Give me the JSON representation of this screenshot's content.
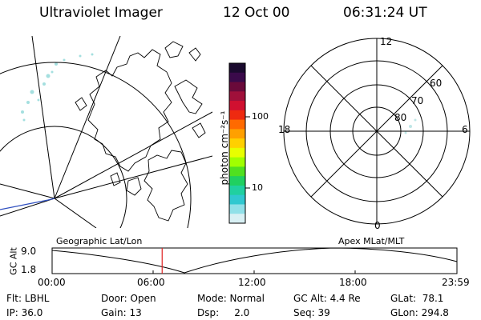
{
  "header": {
    "title": "Ultraviolet Imager",
    "date": "12 Oct 00",
    "time": "06:31:24 UT"
  },
  "colorbar": {
    "unit_label": "photon cm⁻²s⁻¹",
    "ticks": [
      "100",
      "10"
    ],
    "colors": [
      "#1a0a2e",
      "#3a0a4a",
      "#6a0a3a",
      "#a0103a",
      "#d01030",
      "#ee2a10",
      "#ff6a00",
      "#ffa000",
      "#ffd000",
      "#e8ff00",
      "#a0ff00",
      "#50e020",
      "#20d060",
      "#20d0a0",
      "#30c8d0",
      "#90e0e8",
      "#d8f0f4"
    ]
  },
  "polar_plot": {
    "mlt_labels": {
      "top": "12",
      "left": "18",
      "right": "6",
      "bottom": "0"
    },
    "lat_labels": [
      "60",
      "70",
      "80"
    ]
  },
  "timeline": {
    "left_title": "Geographic Lat/Lon",
    "right_title": "Apex MLat/MLT",
    "axis_label": "GC Alt",
    "y_top": "9.0",
    "y_bottom": "1.8",
    "x_ticks": [
      "00:00",
      "06:00",
      "12:00",
      "18:00",
      "23:59"
    ],
    "marker_time_fraction": 0.2718,
    "marker_color": "#e02020"
  },
  "info": {
    "row1": {
      "filter": "Flt: LBHL",
      "door": "Door: Open",
      "mode": "Mode: Normal",
      "gc_alt": "GC Alt: 4.4 Re",
      "glat": "GLat:  78.1"
    },
    "row2": {
      "ip": "IP: 36.0",
      "gain": "Gain: 13",
      "dsp": "Dsp:     2.0",
      "seq": "Seq: 39",
      "glon": "GLon: 294.8"
    }
  }
}
